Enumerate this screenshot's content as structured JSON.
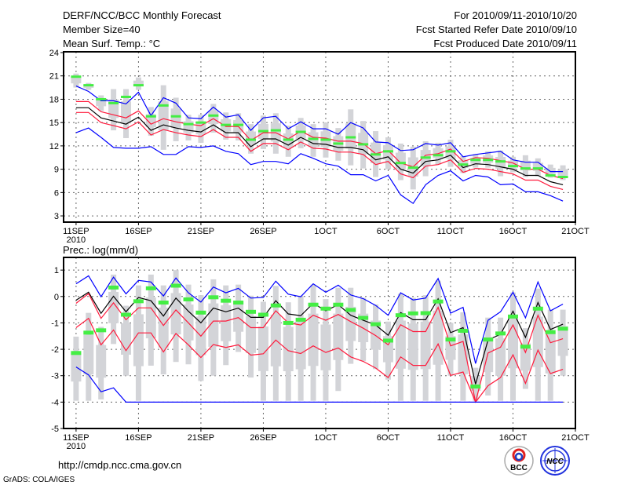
{
  "header": {
    "title": "DERF/NCC/BCC Monthly Forecast",
    "member_size": "Member Size=40",
    "variable": "Mean Surf. Temp.: °C",
    "period": "For 2010/09/11-2010/10/20",
    "start_date": "Fcst Started Refer Date 2010/09/10",
    "produced_date": "Fcst Produced Date 2010/09/11"
  },
  "footer": {
    "url": "http://cmdp.ncc.cma.gov.cn",
    "credit": "GrADS: COLA/IGES",
    "logo_left": "BCC",
    "logo_right": "NCC"
  },
  "colors": {
    "max_min": "#0000ff",
    "spread": "#ff1a3c",
    "mean": "#000000",
    "obs": "#44ee44",
    "range": "#d3d4d8"
  },
  "chart_data": [
    {
      "type": "line",
      "title": "Mean Surf. Temp.: °C",
      "ylabel": "°C",
      "ylim": [
        2.2,
        24.1
      ],
      "yticks": [
        3,
        6,
        9,
        12,
        15,
        18,
        21,
        24
      ],
      "xlim": [
        -1,
        40
      ],
      "xtick_days": [
        0,
        5,
        10,
        15,
        20,
        25,
        30,
        35,
        40
      ],
      "xtick_labels": [
        "11SEP",
        "16SEP",
        "21SEP",
        "26SEP",
        "1OCT",
        "6OCT",
        "11OCT",
        "16OCT",
        "21OCT"
      ],
      "year_label": "2010",
      "grid": true,
      "days": 40,
      "series": [
        {
          "name": "max",
          "color": "#0000ff",
          "values": [
            19.7,
            19.0,
            17.8,
            17.8,
            17.4,
            18.9,
            15.9,
            18.2,
            17.5,
            15.6,
            15.5,
            17.0,
            15.7,
            16.0,
            14.0,
            15.6,
            15.8,
            14.2,
            15.1,
            14.2,
            14.2,
            13.5,
            15.0,
            14.3,
            12.5,
            12.4,
            11.4,
            11.5,
            12.3,
            12.1,
            12.4,
            10.6,
            10.9,
            11.1,
            11.3,
            10.2,
            9.9,
            9.9,
            8.7,
            8.7
          ]
        },
        {
          "name": "upper",
          "color": "#ff1a3c",
          "values": [
            17.7,
            17.7,
            16.4,
            16.0,
            15.6,
            16.5,
            14.8,
            15.5,
            15.1,
            14.8,
            14.6,
            15.5,
            14.5,
            14.5,
            12.7,
            13.7,
            13.7,
            12.9,
            13.9,
            13.1,
            13.0,
            12.6,
            12.6,
            12.3,
            11.0,
            11.4,
            9.8,
            9.3,
            10.8,
            11.0,
            11.6,
            10.0,
            10.5,
            10.4,
            10.1,
            9.8,
            9.0,
            9.0,
            8.2,
            7.8
          ]
        },
        {
          "name": "mean",
          "color": "#000000",
          "values": [
            16.9,
            16.9,
            15.6,
            15.2,
            14.8,
            15.7,
            14.0,
            14.7,
            14.3,
            14.0,
            13.8,
            14.7,
            13.7,
            13.7,
            11.9,
            12.9,
            12.9,
            12.1,
            13.1,
            12.3,
            12.2,
            11.8,
            11.8,
            11.5,
            10.2,
            10.6,
            9.0,
            8.5,
            10.0,
            10.2,
            10.8,
            9.2,
            9.7,
            9.6,
            9.3,
            9.0,
            8.2,
            8.2,
            7.4,
            7.0
          ]
        },
        {
          "name": "lower",
          "color": "#ff1a3c",
          "values": [
            16.3,
            16.3,
            15.0,
            14.6,
            14.2,
            15.1,
            13.4,
            14.1,
            13.7,
            13.4,
            13.2,
            14.1,
            13.1,
            13.1,
            11.3,
            12.3,
            12.3,
            11.5,
            12.5,
            11.7,
            11.6,
            11.2,
            11.2,
            10.9,
            9.6,
            10.0,
            8.4,
            7.9,
            9.4,
            9.6,
            10.2,
            8.6,
            9.1,
            9.0,
            8.7,
            8.4,
            7.6,
            7.6,
            6.8,
            6.4
          ]
        },
        {
          "name": "min",
          "color": "#0000ff",
          "values": [
            13.7,
            14.3,
            13.1,
            11.8,
            11.7,
            11.7,
            11.9,
            10.9,
            10.9,
            11.9,
            11.8,
            12.0,
            11.3,
            11.0,
            9.6,
            10.0,
            10.0,
            9.7,
            11.0,
            10.4,
            9.7,
            9.4,
            8.3,
            8.3,
            7.5,
            8.2,
            5.7,
            4.6,
            7.0,
            8.2,
            8.8,
            7.5,
            8.2,
            8.0,
            7.0,
            7.1,
            6.1,
            6.1,
            5.6,
            4.9
          ]
        }
      ],
      "range_low": [
        19.5,
        19.2,
        16.5,
        14.0,
        13.0,
        19.2,
        13.3,
        11.5,
        12.6,
        12.7,
        12.4,
        13.7,
        12.8,
        12.7,
        11.0,
        11.6,
        11.0,
        10.6,
        11.7,
        10.6,
        10.5,
        10.1,
        9.5,
        9.1,
        8.0,
        9.0,
        7.6,
        6.4,
        8.1,
        9.6,
        9.3,
        8.5,
        9.2,
        9.2,
        8.1,
        8.6,
        8.0,
        8.1,
        7.9,
        7.6
      ],
      "range_high": [
        21.3,
        20.1,
        18.5,
        19.3,
        19.3,
        20.8,
        17.0,
        19.8,
        18.2,
        16.0,
        16.0,
        17.4,
        16.3,
        16.2,
        14.8,
        15.9,
        16.2,
        14.6,
        15.6,
        14.8,
        15.0,
        14.3,
        16.7,
        15.2,
        13.9,
        13.1,
        12.3,
        11.9,
        12.6,
        12.4,
        12.8,
        10.7,
        10.9,
        11.3,
        11.4,
        10.6,
        10.8,
        10.4,
        9.6,
        9.5
      ],
      "observed": [
        20.9,
        19.8,
        18.0,
        17.5,
        18.3,
        19.8,
        15.8,
        17.2,
        15.8,
        14.8,
        15.0,
        15.9,
        14.7,
        14.7,
        12.8,
        13.9,
        14.0,
        12.8,
        13.8,
        12.9,
        12.8,
        12.3,
        13.1,
        12.2,
        10.9,
        11.3,
        9.8,
        9.2,
        10.5,
        10.8,
        11.3,
        9.6,
        10.2,
        10.2,
        10.0,
        9.4,
        9.1,
        9.1,
        8.2,
        8.0
      ]
    },
    {
      "type": "line",
      "title": "Prec.: log(mm/d)",
      "ylabel": "log(mm/d)",
      "ylim": [
        -5,
        1.48
      ],
      "yticks": [
        -5,
        -4,
        -3,
        -2,
        -1,
        0,
        1
      ],
      "xlim": [
        -1,
        40
      ],
      "xtick_days": [
        0,
        5,
        10,
        15,
        20,
        25,
        30,
        35,
        40
      ],
      "xtick_labels": [
        "11SEP",
        "16SEP",
        "21SEP",
        "26SEP",
        "1OCT",
        "6OCT",
        "11OCT",
        "16OCT",
        "21OCT"
      ],
      "year_label": "2010",
      "grid": true,
      "days": 40,
      "series": [
        {
          "name": "max",
          "color": "#0000ff",
          "values": [
            0.48,
            0.78,
            -0.01,
            0.73,
            0.1,
            0.61,
            0.55,
            0.02,
            0.7,
            0.14,
            -0.21,
            0.36,
            0.14,
            0.31,
            -0.06,
            -0.04,
            0.58,
            0.09,
            -0.01,
            0.48,
            0.16,
            0.43,
            0.06,
            -0.08,
            -0.34,
            -0.71,
            0.14,
            -0.13,
            -0.06,
            0.68,
            -0.63,
            -0.41,
            -2.54,
            -0.9,
            -0.58,
            0.16,
            -0.81,
            0.55,
            -0.54,
            -0.29
          ]
        },
        {
          "name": "mean",
          "color": "#000000",
          "values": [
            -0.14,
            0.16,
            -0.64,
            0.01,
            -0.58,
            -0.04,
            -0.16,
            -0.74,
            -0.06,
            -0.56,
            -1.0,
            -0.44,
            -0.58,
            -0.44,
            -0.79,
            -0.79,
            -0.16,
            -0.66,
            -0.73,
            -0.26,
            -0.54,
            -0.31,
            -0.71,
            -0.9,
            -1.08,
            -1.47,
            -0.61,
            -0.88,
            -0.88,
            -0.09,
            -1.37,
            -1.18,
            -3.32,
            -1.65,
            -1.43,
            -0.56,
            -1.55,
            -0.23,
            -1.25,
            -1.05
          ]
        },
        {
          "name": "upper",
          "color": "#ff1a3c",
          "values": [
            -0.26,
            0.11,
            -0.83,
            -0.24,
            -0.88,
            -0.43,
            -0.43,
            -1.1,
            -0.51,
            -1.0,
            -1.5,
            -0.93,
            -0.93,
            -0.8,
            -1.18,
            -1.18,
            -0.54,
            -1.0,
            -1.08,
            -0.71,
            -0.9,
            -0.68,
            -0.95,
            -1.2,
            -1.48,
            -1.83,
            -1.07,
            -1.33,
            -1.33,
            -0.41,
            -1.87,
            -1.7,
            -4.0,
            -2.14,
            -1.92,
            -1.08,
            -2.12,
            -0.71,
            -1.75,
            -1.6
          ]
        },
        {
          "name": "lower",
          "color": "#ff1a3c",
          "values": [
            -1.18,
            -0.83,
            -1.83,
            -1.27,
            -2.05,
            -1.38,
            -1.38,
            -2.1,
            -1.4,
            -1.83,
            -2.31,
            -1.82,
            -1.93,
            -1.83,
            -2.22,
            -2.17,
            -1.65,
            -2.05,
            -2.16,
            -1.87,
            -2.12,
            -1.95,
            -2.29,
            -2.46,
            -2.71,
            -3.07,
            -2.29,
            -2.61,
            -2.61,
            -1.8,
            -2.99,
            -2.86,
            -4.0,
            -3.38,
            -3.07,
            -2.21,
            -3.29,
            -2.03,
            -2.92,
            -2.76
          ]
        },
        {
          "name": "min",
          "color": "#0000ff",
          "values": [
            -2.67,
            -2.97,
            -3.61,
            -3.46,
            -4,
            -4,
            -4,
            -4,
            -4,
            -4,
            -4,
            -4,
            -4,
            -4,
            -4,
            -4,
            -4,
            -4,
            -4,
            -4,
            -4,
            -4,
            -4,
            -4,
            -4,
            -4,
            -4,
            -4,
            -4,
            -4,
            -4,
            -4,
            -4,
            -4,
            -4,
            -4,
            -4,
            -4,
            -4,
            -4
          ]
        }
      ],
      "range_low": [
        -3.95,
        -3.95,
        -3.9,
        -1.8,
        -3.0,
        -3.95,
        -2.62,
        -2.95,
        -2.48,
        -2.57,
        -3.2,
        -3.0,
        -2.6,
        -2.1,
        -3.07,
        -3.95,
        -3.95,
        -3.95,
        -3.95,
        -3.95,
        -3.95,
        -3.58,
        -2.55,
        -2.45,
        -2.75,
        -3.15,
        -3.95,
        -3.95,
        -3.95,
        -3.95,
        -3.0,
        -3.95,
        -3.95,
        -3.75,
        -3.95,
        -3.95,
        -3.5,
        -3.95,
        -3.95,
        -3.0
      ],
      "range_high": [
        -1.52,
        -0.62,
        -1.15,
        0.83,
        -0.35,
        0.42,
        0.83,
        0.42,
        1.0,
        0.45,
        0.05,
        0.65,
        0.42,
        0.45,
        0.03,
        -0.2,
        0.4,
        -0.22,
        0.03,
        0.45,
        -0.1,
        0.33,
        0.33,
        -0.05,
        -0.3,
        -0.95,
        0.1,
        -0.05,
        0.05,
        0.6,
        -1.0,
        -0.6,
        -2.7,
        -0.8,
        -0.8,
        0.15,
        -1.2,
        0.3,
        -0.5,
        -0.5
      ],
      "observed": [
        -2.14,
        -1.37,
        -1.28,
        0.34,
        -0.69,
        -0.18,
        0.31,
        -0.23,
        0.41,
        -0.11,
        -0.61,
        -0.03,
        -0.16,
        -0.23,
        -0.58,
        -0.69,
        -0.34,
        -1.0,
        -0.88,
        -0.31,
        -0.46,
        -0.31,
        -0.51,
        -0.81,
        -1.05,
        -1.67,
        -0.71,
        -0.64,
        -0.63,
        -0.19,
        -1.63,
        -1.3,
        -3.41,
        -1.63,
        -1.4,
        -0.76,
        -1.9,
        -0.46,
        -1.35,
        -1.22
      ]
    }
  ]
}
